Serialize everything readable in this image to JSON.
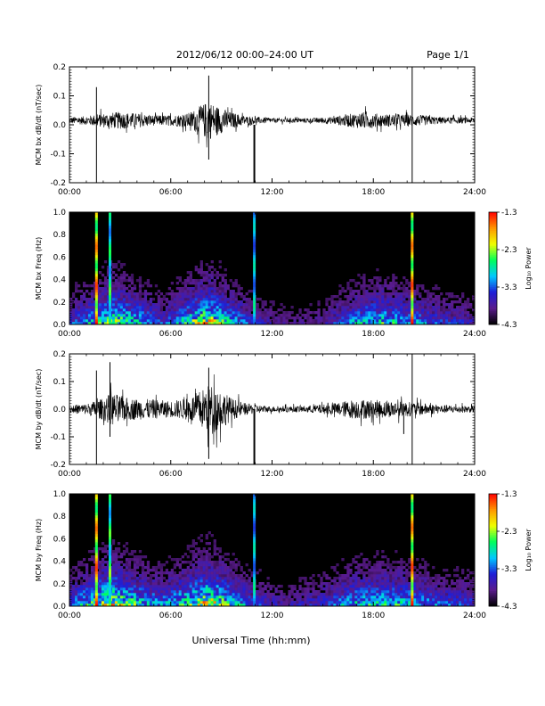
{
  "header": {
    "title": "2012/06/12  00:00–24:00 UT",
    "page": "Page 1/1"
  },
  "footer": {
    "xlabel": "Universal Time (hh:mm)"
  },
  "colors": {
    "background": "#ffffff",
    "plot_bg": "#000000",
    "trace": "#000000"
  },
  "colorbar": {
    "label": "Log₁₀ Power",
    "min": -4.3,
    "max": -1.3,
    "ticks": [
      "-1.3",
      "-2.3",
      "-3.3",
      "-4.3"
    ],
    "stops": [
      "#000000",
      "#5a1b8c",
      "#1e1ed8",
      "#00c8ff",
      "#00ff5a",
      "#f0ff00",
      "#ff9600",
      "#ff0000"
    ]
  },
  "chart_data": [
    {
      "type": "line",
      "ylabel": "MCM bx dB/dt (nT/sec)",
      "xlim": [
        0,
        24
      ],
      "ylim": [
        -0.2,
        0.2
      ],
      "x_ticks": [
        "00:00",
        "06:00",
        "12:00",
        "18:00",
        "24:00"
      ],
      "y_ticks": [
        "0.2",
        "0.1",
        "0.0",
        "-0.1",
        "-0.2"
      ],
      "baseline": 0.015,
      "noise_envelope": [
        {
          "hour": 0.0,
          "amp": 0.012
        },
        {
          "hour": 1.0,
          "amp": 0.015
        },
        {
          "hour": 2.0,
          "amp": 0.025
        },
        {
          "hour": 3.0,
          "amp": 0.03
        },
        {
          "hour": 4.0,
          "amp": 0.025
        },
        {
          "hour": 5.0,
          "amp": 0.018
        },
        {
          "hour": 6.0,
          "amp": 0.018
        },
        {
          "hour": 7.0,
          "amp": 0.025
        },
        {
          "hour": 7.8,
          "amp": 0.05
        },
        {
          "hour": 8.2,
          "amp": 0.07
        },
        {
          "hour": 8.8,
          "amp": 0.05
        },
        {
          "hour": 9.5,
          "amp": 0.03
        },
        {
          "hour": 10.5,
          "amp": 0.015
        },
        {
          "hour": 12.0,
          "amp": 0.008
        },
        {
          "hour": 14.0,
          "amp": 0.008
        },
        {
          "hour": 15.5,
          "amp": 0.012
        },
        {
          "hour": 16.5,
          "amp": 0.022
        },
        {
          "hour": 17.5,
          "amp": 0.03
        },
        {
          "hour": 18.5,
          "amp": 0.022
        },
        {
          "hour": 19.5,
          "amp": 0.022
        },
        {
          "hour": 20.5,
          "amp": 0.02
        },
        {
          "hour": 22.0,
          "amp": 0.012
        },
        {
          "hour": 24.0,
          "amp": 0.01
        }
      ],
      "spikes": [
        {
          "hour": 1.6,
          "max": 0.13,
          "min": -0.2
        },
        {
          "hour": 8.25,
          "max": 0.17,
          "min": -0.12
        },
        {
          "hour": 10.95,
          "max": 0.0,
          "min": -0.2
        },
        {
          "hour": 20.3,
          "max": 0.21,
          "min": -0.2
        }
      ]
    },
    {
      "type": "heatmap",
      "ylabel": "MCM bx Freq (Hz)",
      "xlim": [
        0,
        24
      ],
      "ylim": [
        0,
        1.0
      ],
      "x_ticks": [
        "00:00",
        "06:00",
        "12:00",
        "18:00",
        "24:00"
      ],
      "y_ticks": [
        "1.0",
        "0.8",
        "0.6",
        "0.4",
        "0.2",
        "0.0"
      ],
      "activity": [
        {
          "hour": 0.0,
          "level": 0.3
        },
        {
          "hour": 1.5,
          "level": 0.5
        },
        {
          "hour": 2.5,
          "level": 0.7
        },
        {
          "hour": 4.0,
          "level": 0.5
        },
        {
          "hour": 5.5,
          "level": 0.3
        },
        {
          "hour": 7.0,
          "level": 0.55
        },
        {
          "hour": 8.2,
          "level": 0.8
        },
        {
          "hour": 9.5,
          "level": 0.5
        },
        {
          "hour": 11.0,
          "level": 0.25
        },
        {
          "hour": 13.0,
          "level": 0.15
        },
        {
          "hour": 15.0,
          "level": 0.2
        },
        {
          "hour": 17.0,
          "level": 0.45
        },
        {
          "hour": 18.5,
          "level": 0.55
        },
        {
          "hour": 20.0,
          "level": 0.45
        },
        {
          "hour": 22.0,
          "level": 0.3
        },
        {
          "hour": 24.0,
          "level": 0.25
        }
      ],
      "vertical_stripes": [
        {
          "hour": 1.6,
          "level": 1.0
        },
        {
          "hour": 2.4,
          "level": 0.65
        },
        {
          "hour": 10.95,
          "level": 0.55
        },
        {
          "hour": 20.3,
          "level": 1.0
        }
      ]
    },
    {
      "type": "line",
      "ylabel": "MCM by dB/dt (nT/sec)",
      "xlim": [
        0,
        24
      ],
      "ylim": [
        -0.2,
        0.2
      ],
      "x_ticks": [
        "00:00",
        "06:00",
        "12:00",
        "18:00",
        "24:00"
      ],
      "y_ticks": [
        "0.2",
        "0.1",
        "0.0",
        "-0.1",
        "-0.2"
      ],
      "baseline": 0.0,
      "noise_envelope": [
        {
          "hour": 0.0,
          "amp": 0.015
        },
        {
          "hour": 1.0,
          "amp": 0.02
        },
        {
          "hour": 2.0,
          "amp": 0.04
        },
        {
          "hour": 2.5,
          "amp": 0.06
        },
        {
          "hour": 3.5,
          "amp": 0.04
        },
        {
          "hour": 5.0,
          "amp": 0.035
        },
        {
          "hour": 6.0,
          "amp": 0.03
        },
        {
          "hour": 7.0,
          "amp": 0.04
        },
        {
          "hour": 7.8,
          "amp": 0.07
        },
        {
          "hour": 8.3,
          "amp": 0.09
        },
        {
          "hour": 8.8,
          "amp": 0.08
        },
        {
          "hour": 9.6,
          "amp": 0.04
        },
        {
          "hour": 10.5,
          "amp": 0.02
        },
        {
          "hour": 12.0,
          "amp": 0.01
        },
        {
          "hour": 14.0,
          "amp": 0.012
        },
        {
          "hour": 15.5,
          "amp": 0.02
        },
        {
          "hour": 16.8,
          "amp": 0.035
        },
        {
          "hour": 17.8,
          "amp": 0.035
        },
        {
          "hour": 19.0,
          "amp": 0.03
        },
        {
          "hour": 20.5,
          "amp": 0.025
        },
        {
          "hour": 22.0,
          "amp": 0.015
        },
        {
          "hour": 24.0,
          "amp": 0.012
        }
      ],
      "spikes": [
        {
          "hour": 1.6,
          "max": 0.14,
          "min": -0.2
        },
        {
          "hour": 2.4,
          "max": 0.17,
          "min": -0.1
        },
        {
          "hour": 8.25,
          "max": 0.15,
          "min": -0.18
        },
        {
          "hour": 10.95,
          "max": 0.0,
          "min": -0.2
        },
        {
          "hour": 20.3,
          "max": 0.21,
          "min": -0.2
        },
        {
          "hour": 19.8,
          "max": 0.02,
          "min": -0.09
        }
      ]
    },
    {
      "type": "heatmap",
      "ylabel": "MCM by Freq (Hz)",
      "xlim": [
        0,
        24
      ],
      "ylim": [
        0,
        1.0
      ],
      "x_ticks": [
        "00:00",
        "06:00",
        "12:00",
        "18:00",
        "24:00"
      ],
      "y_ticks": [
        "1.0",
        "0.8",
        "0.6",
        "0.4",
        "0.2",
        "0.0"
      ],
      "activity": [
        {
          "hour": 0.0,
          "level": 0.35
        },
        {
          "hour": 1.5,
          "level": 0.6
        },
        {
          "hour": 2.5,
          "level": 0.8
        },
        {
          "hour": 4.0,
          "level": 0.55
        },
        {
          "hour": 5.5,
          "level": 0.4
        },
        {
          "hour": 7.0,
          "level": 0.6
        },
        {
          "hour": 8.2,
          "level": 0.85
        },
        {
          "hour": 9.5,
          "level": 0.55
        },
        {
          "hour": 11.0,
          "level": 0.3
        },
        {
          "hour": 13.0,
          "level": 0.2
        },
        {
          "hour": 15.0,
          "level": 0.3
        },
        {
          "hour": 17.0,
          "level": 0.5
        },
        {
          "hour": 18.5,
          "level": 0.55
        },
        {
          "hour": 20.0,
          "level": 0.5
        },
        {
          "hour": 22.0,
          "level": 0.35
        },
        {
          "hour": 24.0,
          "level": 0.3
        }
      ],
      "vertical_stripes": [
        {
          "hour": 1.6,
          "level": 1.0
        },
        {
          "hour": 2.4,
          "level": 0.7
        },
        {
          "hour": 10.95,
          "level": 0.55
        },
        {
          "hour": 20.3,
          "level": 1.0
        }
      ]
    }
  ]
}
